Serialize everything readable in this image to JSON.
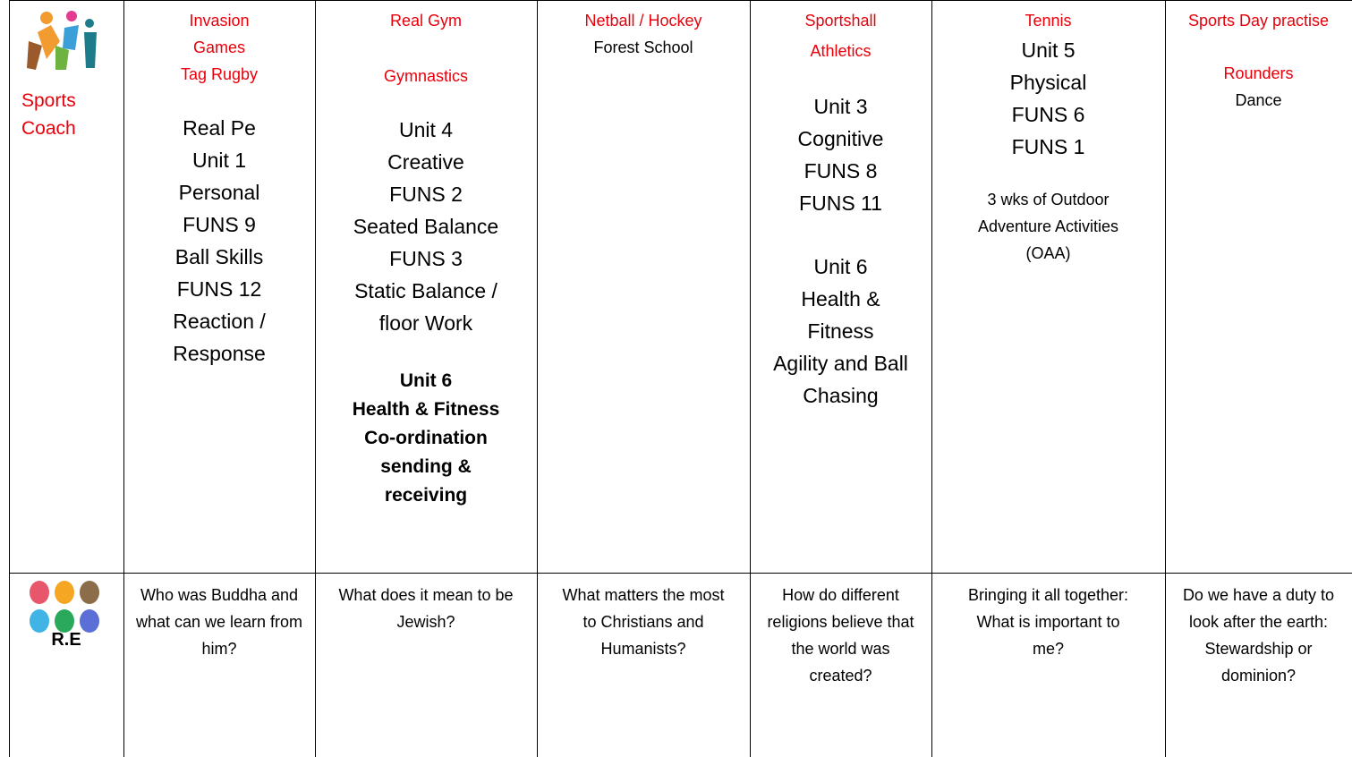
{
  "table": {
    "rows": [
      {
        "header": "Sports Coach",
        "cells": [
          [
            "Invasion",
            "Games",
            "Tag Rugby",
            "Real Pe",
            "Unit 1",
            "Personal",
            "FUNS 9",
            "Ball Skills",
            "FUNS 12",
            "Reaction /",
            "Response"
          ],
          [
            "Real Gym",
            "Gymnastics",
            "Unit 4",
            "Creative",
            "FUNS 2",
            "Seated Balance",
            "FUNS 3",
            "Static Balance /",
            "floor Work",
            "Unit 6",
            "Health & Fitness",
            "Co-ordination",
            "sending &",
            "receiving"
          ],
          [
            "Netball / Hockey",
            "Forest School"
          ],
          [
            "Sportshall",
            "Athletics",
            "Unit 3",
            "Cognitive",
            "FUNS 8",
            "FUNS 11",
            "Unit 6",
            "Health &",
            "Fitness",
            "Agility and Ball",
            "Chasing"
          ],
          [
            "Tennis",
            "Unit 5",
            "Physical",
            "FUNS 6",
            "FUNS 1",
            "3 wks of Outdoor",
            "Adventure Activities",
            "(OAA)"
          ],
          [
            "Sports Day practise",
            "Rounders",
            "Dance"
          ]
        ]
      },
      {
        "header": "R.E",
        "cells": [
          "Who was Buddha and what can we learn from him?",
          "What does it mean to be Jewish?",
          "What matters the most to Christians and Humanists?",
          "How do different religions believe that the world was created?",
          "Bringing it all together: What is important to me?",
          "Do we have a duty to look after the earth: Stewardship or dominion?"
        ]
      }
    ]
  }
}
